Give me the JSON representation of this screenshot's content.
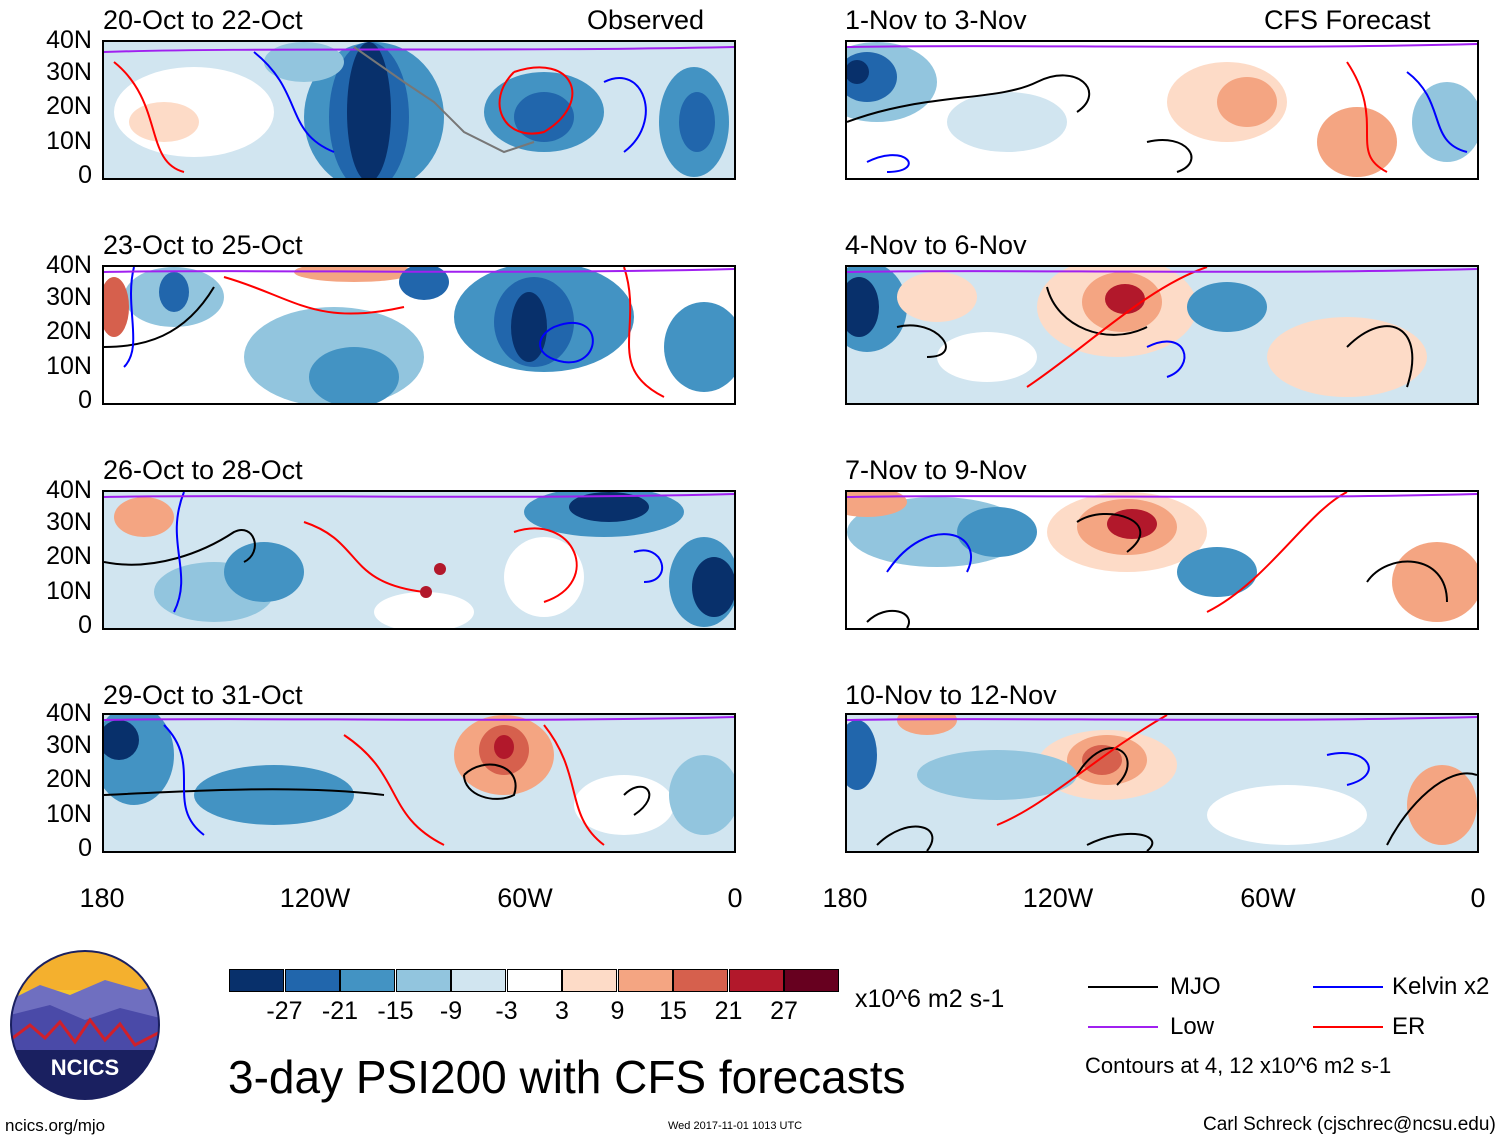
{
  "title": "3-day PSI200 with CFS forecasts",
  "left_header": "Observed",
  "right_header": "CFS Forecast",
  "panels_left": [
    {
      "label": "20-Oct to 22-Oct"
    },
    {
      "label": "23-Oct to 25-Oct"
    },
    {
      "label": "26-Oct to 28-Oct"
    },
    {
      "label": "29-Oct to 31-Oct"
    }
  ],
  "panels_right": [
    {
      "label": "1-Nov to 3-Nov"
    },
    {
      "label": "4-Nov to 6-Nov"
    },
    {
      "label": "7-Nov to 9-Nov"
    },
    {
      "label": "10-Nov to 12-Nov"
    }
  ],
  "lat_labels": [
    "40N",
    "30N",
    "20N",
    "10N",
    "0"
  ],
  "lon_labels": [
    "180",
    "120W",
    "60W",
    "0"
  ],
  "colorbar": {
    "labels": [
      "-27",
      "-21",
      "-15",
      "-9",
      "-3",
      "3",
      "9",
      "15",
      "21",
      "27"
    ],
    "units": "x10^6 m2 s-1",
    "colors": [
      "#08306b",
      "#2166ac",
      "#4393c3",
      "#92c5de",
      "#d1e5f0",
      "#ffffff",
      "#fddbc7",
      "#f4a582",
      "#d6604d",
      "#b2182b",
      "#67001f"
    ]
  },
  "legend": {
    "items": [
      {
        "label": "MJO",
        "color": "#000000"
      },
      {
        "label": "Kelvin x2",
        "color": "#0000ff"
      },
      {
        "label": "Low",
        "color": "#a020f0"
      },
      {
        "label": "ER",
        "color": "#ff0000"
      }
    ],
    "contours_note": "Contours at 4, 12 x10^6 m2 s-1"
  },
  "logo_text": "NCICS",
  "footer": {
    "url": "ncics.org/mjo",
    "timestamp": "Wed 2017-11-01 1013 UTC",
    "credit": "Carl Schreck (cjschrec@ncsu.edu)"
  }
}
